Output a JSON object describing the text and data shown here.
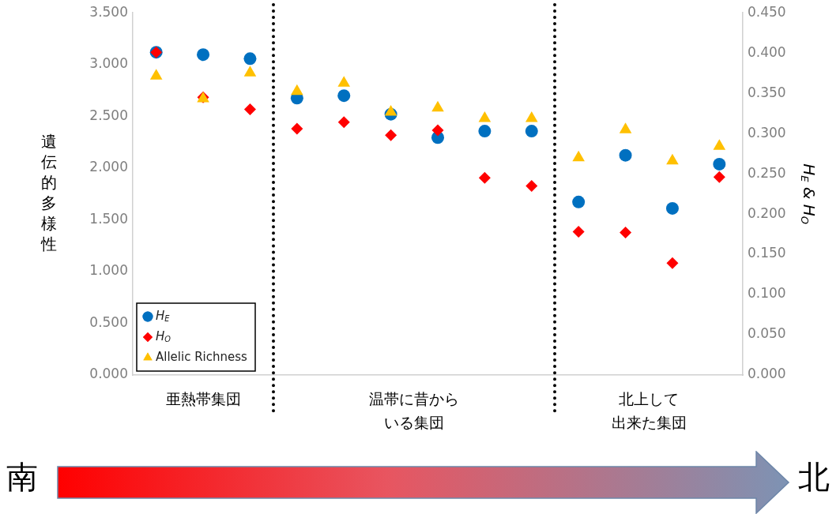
{
  "chart_data": {
    "type": "scatter",
    "ylabel": "遺伝的多様性",
    "y2label": "H$_{E}$ & H$_{O}$",
    "categories": [
      null,
      null,
      null,
      null,
      null,
      null,
      null,
      null,
      null,
      null,
      null,
      null,
      null
    ],
    "ylim": [
      0,
      3.5
    ],
    "yticks": [
      {
        "value": 0,
        "label": "0.000"
      },
      {
        "value": 0.5,
        "label": "0.500"
      },
      {
        "value": 1,
        "label": "1.000"
      },
      {
        "value": 1.5,
        "label": "1.500"
      },
      {
        "value": 2,
        "label": "2.000"
      },
      {
        "value": 2.5,
        "label": "2.500"
      },
      {
        "value": 3,
        "label": "3.000"
      },
      {
        "value": 3.5,
        "label": "3.500"
      }
    ],
    "y2lim": [
      0,
      0.45
    ],
    "y2ticks": [
      {
        "value": 0,
        "label": "0.000"
      },
      {
        "value": 0.05,
        "label": "0.050"
      },
      {
        "value": 0.1,
        "label": "0.100"
      },
      {
        "value": 0.15,
        "label": "0.150"
      },
      {
        "value": 0.2,
        "label": "0.200"
      },
      {
        "value": 0.25,
        "label": "0.250"
      },
      {
        "value": 0.3,
        "label": "0.300"
      },
      {
        "value": 0.35,
        "label": "0.350"
      },
      {
        "value": 0.4,
        "label": "0.400"
      },
      {
        "value": 0.45,
        "label": "0.450"
      }
    ],
    "series": [
      {
        "name": "H$_{E}$",
        "color": "#0070c0",
        "marker": "circle",
        "axis": "y2",
        "values": [
          0.401,
          0.398,
          0.393,
          0.344,
          0.347,
          0.324,
          0.295,
          0.303,
          0.303,
          0.215,
          0.273,
          0.207,
          0.262
        ]
      },
      {
        "name": "H$_{O}$",
        "color": "#ff0000",
        "marker": "diamond",
        "axis": "y2",
        "values": [
          0.401,
          0.345,
          0.33,
          0.306,
          0.314,
          0.298,
          0.304,
          0.245,
          0.235,
          0.178,
          0.177,
          0.139,
          0.246
        ]
      },
      {
        "name": "Allelic Richness",
        "color": "#ffc000",
        "marker": "triangle",
        "values": [
          2.89,
          2.67,
          2.92,
          2.74,
          2.82,
          2.54,
          2.58,
          2.48,
          2.48,
          2.1,
          2.37,
          2.07,
          2.21
        ]
      }
    ],
    "annotations": [
      "亜熱帯集団",
      "温帯に昔からいる集団",
      "北上して出来た集団",
      "南",
      "北"
    ],
    "legend": "bottom left",
    "grid": false,
    "tick_labels": "y"
  }
}
